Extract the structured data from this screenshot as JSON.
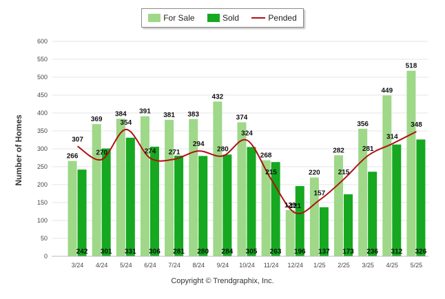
{
  "legend": {
    "for_sale": "For Sale",
    "sold": "Sold",
    "pended": "Pended"
  },
  "copyright": "Copyright © Trendgraphix, Inc.",
  "colors": {
    "for_sale": "#9ed888",
    "sold": "#16a820",
    "pended": "#b01010",
    "grid": "#e4e4e4"
  },
  "chart_data": {
    "type": "bar",
    "ylabel": "Number of Homes",
    "xlabel": "",
    "ylim": [
      0,
      600
    ],
    "yticks": [
      0,
      50,
      100,
      150,
      200,
      250,
      300,
      350,
      400,
      450,
      500,
      550,
      600
    ],
    "grid": true,
    "legend_position": "top-center",
    "categories": [
      "3/24",
      "4/24",
      "5/24",
      "6/24",
      "7/24",
      "8/24",
      "9/24",
      "10/24",
      "11/24",
      "12/24",
      "1/25",
      "2/25",
      "3/25",
      "4/25",
      "5/25"
    ],
    "series": [
      {
        "name": "For Sale",
        "type": "bar",
        "values": [
          266,
          369,
          384,
          391,
          381,
          383,
          432,
          374,
          268,
          129,
          220,
          282,
          356,
          449,
          518
        ]
      },
      {
        "name": "Sold",
        "type": "bar",
        "values": [
          242,
          301,
          331,
          306,
          281,
          280,
          284,
          305,
          263,
          196,
          137,
          173,
          236,
          312,
          326
        ]
      },
      {
        "name": "Pended",
        "type": "line",
        "values": [
          307,
          270,
          354,
          274,
          271,
          294,
          280,
          324,
          215,
          121,
          157,
          215,
          281,
          314,
          348
        ]
      }
    ]
  }
}
